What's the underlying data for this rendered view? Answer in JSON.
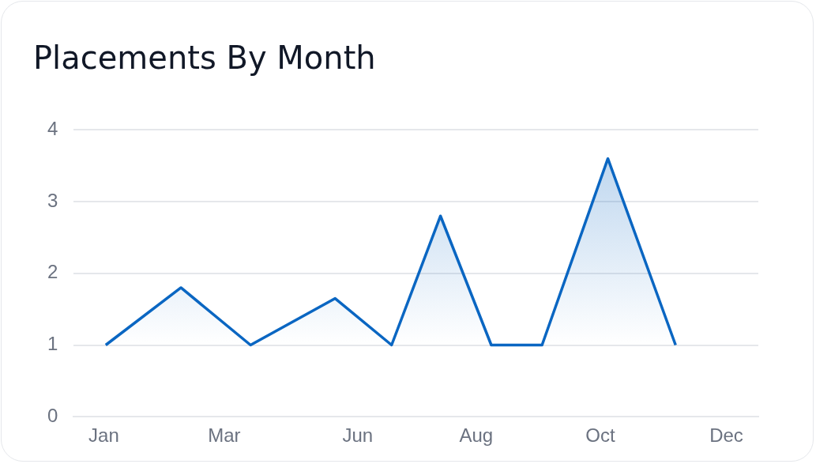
{
  "chart_data": {
    "type": "area",
    "title": "Placements By Month",
    "x": [
      "--01-18",
      "--02-27",
      "--04-05",
      "--05-20",
      "--06-19",
      "--07-15",
      "--08-11",
      "--09-07",
      "--10-12",
      "--11-17"
    ],
    "series": [
      {
        "color": "#0a66c2",
        "values": [
          1,
          1.8,
          1,
          1.65,
          1,
          2.8,
          1,
          1,
          3.6,
          1
        ]
      }
    ],
    "xlim": [
      "--01-01",
      "--12-31"
    ],
    "xticks": [
      {
        "value": "--01-17",
        "label": "Jan"
      },
      {
        "value": "--03-22",
        "label": "Mar"
      },
      {
        "value": "--06-01",
        "label": "Jun"
      },
      {
        "value": "--08-03",
        "label": "Aug"
      },
      {
        "value": "--10-08",
        "label": "Oct"
      },
      {
        "value": "--12-14",
        "label": "Dec"
      }
    ],
    "ylim": [
      0,
      4
    ],
    "yticks": [
      0,
      1,
      2,
      3,
      4
    ],
    "grid": "y",
    "legend": false
  }
}
